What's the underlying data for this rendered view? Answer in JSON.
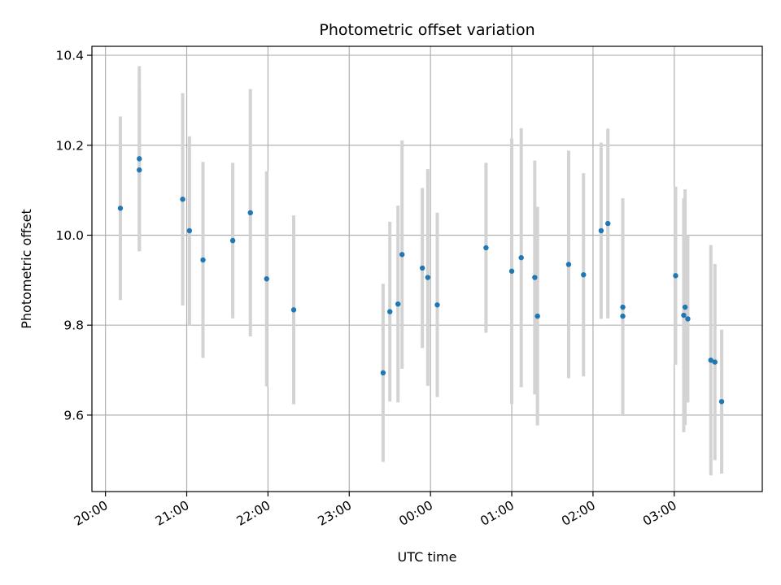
{
  "chart_data": {
    "type": "scatter",
    "title": "Photometric offset variation",
    "xlabel": "UTC time",
    "ylabel": "Photometric offset",
    "xlim": [
      "19:50",
      "28:05"
    ],
    "ylim": [
      9.43,
      10.42
    ],
    "x_ticks": [
      "20:00",
      "21:00",
      "22:00",
      "23:00",
      "00:00",
      "01:00",
      "02:00",
      "03:00"
    ],
    "y_ticks": [
      "9.6",
      "9.8",
      "10.0",
      "10.2",
      "10.4"
    ],
    "y_tick_values": [
      9.6,
      9.8,
      10.0,
      10.2,
      10.4
    ],
    "grid": true,
    "colors": {
      "point": "#1f77b4",
      "errorbar": "#d3d3d3",
      "grid": "#b0b0b0"
    },
    "series": [
      {
        "points": [
          {
            "t": "20:11",
            "y": 10.06,
            "err": 0.204
          },
          {
            "t": "20:25",
            "y": 10.17,
            "err": 0.206
          },
          {
            "t": "20:25",
            "y": 10.145,
            "err": 0.18
          },
          {
            "t": "20:57",
            "y": 10.08,
            "err": 0.236
          },
          {
            "t": "21:02",
            "y": 10.01,
            "err": 0.21
          },
          {
            "t": "21:12",
            "y": 9.945,
            "err": 0.218
          },
          {
            "t": "21:34",
            "y": 9.988,
            "err": 0.173
          },
          {
            "t": "21:47",
            "y": 10.05,
            "err": 0.275
          },
          {
            "t": "21:59",
            "y": 9.903,
            "err": 0.239
          },
          {
            "t": "22:19",
            "y": 9.834,
            "err": 0.21
          },
          {
            "t": "23:25",
            "y": 9.694,
            "err": 0.198
          },
          {
            "t": "23:30",
            "y": 9.83,
            "err": 0.2
          },
          {
            "t": "23:36",
            "y": 9.847,
            "err": 0.219
          },
          {
            "t": "23:39",
            "y": 9.957,
            "err": 0.254
          },
          {
            "t": "23:54",
            "y": 9.927,
            "err": 0.178
          },
          {
            "t": "23:58",
            "y": 9.906,
            "err": 0.241
          },
          {
            "t": "24:05",
            "y": 9.845,
            "err": 0.205
          },
          {
            "t": "24:41",
            "y": 9.972,
            "err": 0.189
          },
          {
            "t": "25:00",
            "y": 9.92,
            "err": 0.295
          },
          {
            "t": "25:07",
            "y": 9.95,
            "err": 0.288
          },
          {
            "t": "25:17",
            "y": 9.906,
            "err": 0.26
          },
          {
            "t": "25:19",
            "y": 9.82,
            "err": 0.243
          },
          {
            "t": "25:42",
            "y": 9.935,
            "err": 0.253
          },
          {
            "t": "25:53",
            "y": 9.912,
            "err": 0.226
          },
          {
            "t": "26:06",
            "y": 10.01,
            "err": 0.196
          },
          {
            "t": "26:11",
            "y": 10.026,
            "err": 0.211
          },
          {
            "t": "26:22",
            "y": 9.84,
            "err": 0.242
          },
          {
            "t": "26:22",
            "y": 9.82,
            "err": 0.19
          },
          {
            "t": "27:01",
            "y": 9.91,
            "err": 0.198
          },
          {
            "t": "27:07",
            "y": 9.822,
            "err": 0.26
          },
          {
            "t": "27:08",
            "y": 9.84,
            "err": 0.262
          },
          {
            "t": "27:10",
            "y": 9.814,
            "err": 0.186
          },
          {
            "t": "27:27",
            "y": 9.722,
            "err": 0.256
          },
          {
            "t": "27:30",
            "y": 9.718,
            "err": 0.218
          },
          {
            "t": "27:35",
            "y": 9.63,
            "err": 0.16
          }
        ]
      }
    ]
  }
}
